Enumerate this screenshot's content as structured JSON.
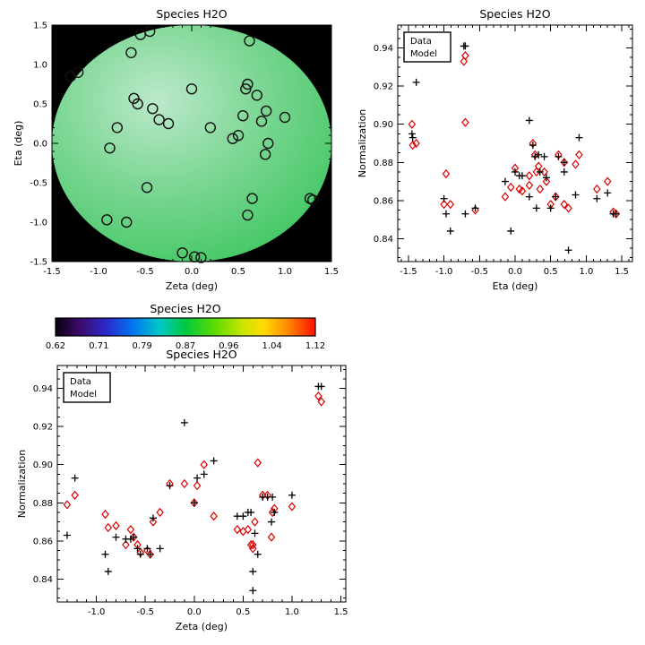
{
  "figure": {
    "background": "#ffffff"
  },
  "chart_data": {
    "type": "scatter",
    "species": "H2O",
    "markers": {
      "map": "open-circle",
      "data": "plus",
      "model": "open-diamond"
    },
    "legend": {
      "entries": [
        {
          "label": "Data",
          "color": "#000000"
        },
        {
          "label": "Model",
          "color": "#dd0000"
        }
      ]
    },
    "charts": [
      {
        "name": "map",
        "kind": "map",
        "title": "Species H2O",
        "xlabel": "Zeta (deg)",
        "ylabel": "Eta (deg)",
        "xlim": [
          -1.5,
          1.5
        ],
        "ylim": [
          -1.5,
          1.5
        ],
        "xticks": [
          -1.5,
          -1.0,
          -0.5,
          0.0,
          0.5,
          1.0,
          1.5
        ],
        "xtick_labels": [
          "-1.5",
          "-1.0",
          "-0.5",
          "0.0",
          "0.5",
          "1.0",
          "1.5"
        ],
        "yticks": [
          -1.5,
          -1.0,
          -0.5,
          0.0,
          0.5,
          1.0,
          1.5
        ],
        "ytick_labels": [
          "-1.5",
          "-1.0",
          "-0.5",
          "0.0",
          "0.5",
          "1.0",
          "1.5"
        ],
        "xminor": 0.1,
        "yminor": 0.1,
        "x_field": "zeta",
        "y_field": "eta",
        "background": "#000000",
        "disk": {
          "radius": 1.5,
          "stops": [
            {
              "pos": "0%",
              "color": "#bce9cb"
            },
            {
              "pos": "45%",
              "color": "#7dd795"
            },
            {
              "pos": "100%",
              "color": "#3cc55e"
            }
          ]
        }
      },
      {
        "name": "eta-scatter",
        "kind": "scatter",
        "title": "Species H2O",
        "xlabel": "Eta (deg)",
        "ylabel": "Normalization",
        "xlim": [
          -1.65,
          1.65
        ],
        "ylim": [
          0.828,
          0.952
        ],
        "xticks": [
          -1.5,
          -1.0,
          -0.5,
          0.0,
          0.5,
          1.0,
          1.5
        ],
        "xtick_labels": [
          "-1.5",
          "-1.0",
          "-0.5",
          "0.0",
          "0.5",
          "1.0",
          "1.5"
        ],
        "yticks": [
          0.84,
          0.86,
          0.88,
          0.9,
          0.92,
          0.94
        ],
        "ytick_labels": [
          "0.84",
          "0.86",
          "0.88",
          "0.90",
          "0.92",
          "0.94"
        ],
        "xminor": 0.1,
        "yminor": 0.005,
        "x_field": "eta",
        "legend": true
      },
      {
        "name": "zeta-scatter",
        "kind": "scatter",
        "title": "Species H2O",
        "xlabel": "Zeta (deg)",
        "ylabel": "Normalization",
        "xlim": [
          -1.4,
          1.55
        ],
        "ylim": [
          0.828,
          0.952
        ],
        "xticks": [
          -1.0,
          -0.5,
          0.0,
          0.5,
          1.0,
          1.5
        ],
        "xtick_labels": [
          "-1.0",
          "-0.5",
          "0.0",
          "0.5",
          "1.0",
          "1.5"
        ],
        "yticks": [
          0.84,
          0.86,
          0.88,
          0.9,
          0.92,
          0.94
        ],
        "ytick_labels": [
          "0.84",
          "0.86",
          "0.88",
          "0.90",
          "0.92",
          "0.94"
        ],
        "xminor": 0.1,
        "yminor": 0.005,
        "x_field": "zeta",
        "legend": true
      }
    ],
    "colorbar": {
      "title": "Species H2O",
      "tick_labels": [
        "0.62",
        "0.71",
        "0.79",
        "0.87",
        "0.96",
        "1.04",
        "1.12"
      ],
      "range": [
        0.62,
        1.12
      ],
      "stops": [
        {
          "pos": "0%",
          "color": "#08000f"
        },
        {
          "pos": "9%",
          "color": "#3c0a66"
        },
        {
          "pos": "20%",
          "color": "#2b2bd0"
        },
        {
          "pos": "30%",
          "color": "#0077f0"
        },
        {
          "pos": "40%",
          "color": "#00c8c8"
        },
        {
          "pos": "50%",
          "color": "#00c83e"
        },
        {
          "pos": "62%",
          "color": "#63dc00"
        },
        {
          "pos": "72%",
          "color": "#c8e600"
        },
        {
          "pos": "80%",
          "color": "#ffdc00"
        },
        {
          "pos": "89%",
          "color": "#ff8c00"
        },
        {
          "pos": "100%",
          "color": "#ff0f00"
        }
      ]
    },
    "points": [
      {
        "zeta": -1.3,
        "eta": 0.85,
        "data": 0.863,
        "model": 0.879
      },
      {
        "zeta": -1.22,
        "eta": 0.9,
        "data": 0.893,
        "model": 0.884
      },
      {
        "zeta": -0.91,
        "eta": -0.97,
        "data": 0.853,
        "model": 0.874
      },
      {
        "zeta": -0.88,
        "eta": -0.06,
        "data": 0.844,
        "model": 0.867
      },
      {
        "zeta": -0.8,
        "eta": 0.2,
        "data": 0.862,
        "model": 0.868
      },
      {
        "zeta": -0.7,
        "eta": -1.0,
        "data": 0.861,
        "model": 0.858
      },
      {
        "zeta": -0.65,
        "eta": 1.15,
        "data": 0.861,
        "model": 0.866
      },
      {
        "zeta": -0.62,
        "eta": 0.57,
        "data": 0.862,
        "model": 0.862
      },
      {
        "zeta": -0.58,
        "eta": 0.5,
        "data": 0.856,
        "model": 0.858
      },
      {
        "zeta": -0.55,
        "eta": 1.38,
        "data": 0.853,
        "model": 0.854
      },
      {
        "zeta": -0.48,
        "eta": -0.56,
        "data": 0.856,
        "model": 0.855
      },
      {
        "zeta": -0.45,
        "eta": 1.42,
        "data": 0.853,
        "model": 0.853
      },
      {
        "zeta": -0.42,
        "eta": 0.44,
        "data": 0.872,
        "model": 0.87
      },
      {
        "zeta": -0.35,
        "eta": 0.3,
        "data": 0.856,
        "model": 0.875
      },
      {
        "zeta": -0.25,
        "eta": 0.25,
        "data": 0.889,
        "model": 0.89
      },
      {
        "zeta": -0.1,
        "eta": -1.39,
        "data": 0.922,
        "model": 0.89
      },
      {
        "zeta": 0.03,
        "eta": -1.44,
        "data": 0.893,
        "model": 0.889
      },
      {
        "zeta": 0.0,
        "eta": 0.69,
        "data": 0.88,
        "model": 0.88
      },
      {
        "zeta": 0.1,
        "eta": -1.45,
        "data": 0.895,
        "model": 0.9
      },
      {
        "zeta": 0.2,
        "eta": 0.2,
        "data": 0.902,
        "model": 0.873
      },
      {
        "zeta": 0.44,
        "eta": 0.06,
        "data": 0.873,
        "model": 0.866
      },
      {
        "zeta": 0.5,
        "eta": 0.1,
        "data": 0.873,
        "model": 0.865
      },
      {
        "zeta": 0.55,
        "eta": 0.35,
        "data": 0.875,
        "model": 0.866
      },
      {
        "zeta": 0.58,
        "eta": 0.69,
        "data": 0.875,
        "model": 0.858
      },
      {
        "zeta": 0.6,
        "eta": -0.91,
        "data": 0.844,
        "model": 0.858
      },
      {
        "zeta": 0.6,
        "eta": 0.75,
        "data": 0.834,
        "model": 0.856
      },
      {
        "zeta": 0.62,
        "eta": 1.3,
        "data": 0.864,
        "model": 0.87
      },
      {
        "zeta": 0.65,
        "eta": -0.7,
        "data": 0.853,
        "model": 0.901
      },
      {
        "zeta": 0.7,
        "eta": 0.61,
        "data": 0.883,
        "model": 0.884
      },
      {
        "zeta": 0.75,
        "eta": 0.28,
        "data": 0.883,
        "model": 0.884
      },
      {
        "zeta": 0.79,
        "eta": -0.14,
        "data": 0.87,
        "model": 0.862
      },
      {
        "zeta": 0.8,
        "eta": 0.41,
        "data": 0.883,
        "model": 0.875
      },
      {
        "zeta": 0.82,
        "eta": 0.0,
        "data": 0.875,
        "model": 0.877
      },
      {
        "zeta": 1.0,
        "eta": 0.33,
        "data": 0.884,
        "model": 0.878
      },
      {
        "zeta": 1.27,
        "eta": -0.7,
        "data": 0.941,
        "model": 0.936
      },
      {
        "zeta": 1.3,
        "eta": -0.72,
        "data": 0.941,
        "model": 0.933
      }
    ]
  }
}
